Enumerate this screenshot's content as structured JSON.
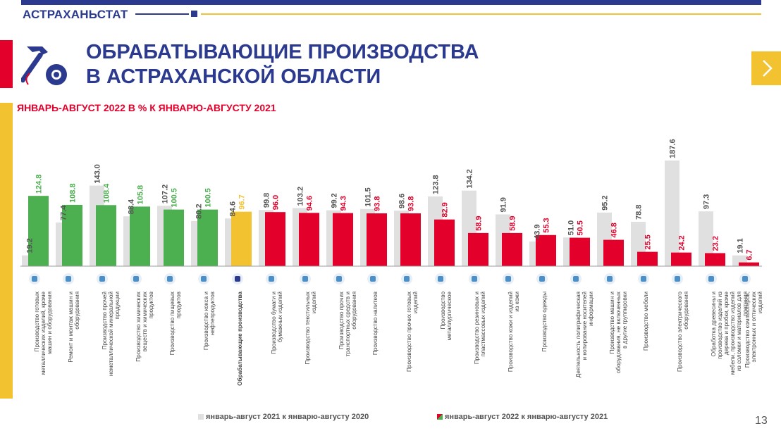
{
  "header": {
    "brand": "АСТРАХАНЬСТАТ"
  },
  "title": {
    "line1": "ОБРАБАТЫВАЮЩИЕ ПРОИЗВОДСТВА",
    "line2": "В АСТРАХАНСКОЙ ОБЛАСТИ"
  },
  "subtitle": "ЯНВАРЬ-АВГУСТ 2022 В % К ЯНВАРЮ-АВГУСТУ 2021",
  "page_number": "13",
  "colors": {
    "brand": "#2b3a8f",
    "accent_red": "#e3002b",
    "accent_yellow": "#f2c230",
    "green": "#4caf50",
    "gray": "#e0e0e0"
  },
  "chart_data": {
    "type": "bar",
    "title": "ЯНВАРЬ-АВГУСТ 2022 В % К ЯНВАРЮ-АВГУСТУ 2021",
    "categories": [
      {
        "label": "Производство готовых металлических изделий, кроме машин и оборудования",
        "bold": false,
        "icon": "metal-products-icon"
      },
      {
        "label": "Ремонт и монтаж машин и оборудования",
        "bold": false,
        "icon": "robot-arm-icon"
      },
      {
        "label": "Производство прочей неметаллической минеральной продукции",
        "bold": false,
        "icon": "mineral-products-icon"
      },
      {
        "label": "Производство химических веществ и химических продуктов",
        "bold": false,
        "icon": "test-tube-icon"
      },
      {
        "label": "Производство пищевых продуктов",
        "bold": false,
        "icon": "ice-cream-icon"
      },
      {
        "label": "Производство кокса и нефтепродуктов",
        "bold": false,
        "icon": "oil-pump-icon"
      },
      {
        "label": "Обрабатывающие производства",
        "bold": true,
        "icon": "hammer-gear-icon"
      },
      {
        "label": "Производство бумаги и бумажных изделий",
        "bold": false,
        "icon": "paper-icon"
      },
      {
        "label": "Производство текстильных изделий",
        "bold": false,
        "icon": "textile-icon"
      },
      {
        "label": "Производство прочих транспортных средств и оборудования",
        "bold": false,
        "icon": "bicycle-icon"
      },
      {
        "label": "Производство напитков",
        "bold": false,
        "icon": "bottle-icon"
      },
      {
        "label": "Производство прочих готовых изделий",
        "bold": false,
        "icon": "misc-products-icon"
      },
      {
        "label": "Производство металлургическое",
        "bold": false,
        "icon": "ladle-icon"
      },
      {
        "label": "Производство резиновых и пластмассовых изделий",
        "bold": false,
        "icon": "boot-icon"
      },
      {
        "label": "Производство кожи и изделий из кожи",
        "bold": false,
        "icon": "leather-icon"
      },
      {
        "label": "Производство одежды",
        "bold": false,
        "icon": "jacket-icon"
      },
      {
        "label": "Деятельность полиграфическая и копирование носителей информации",
        "bold": false,
        "icon": "printing-icon"
      },
      {
        "label": "Производство машин и оборудования, не включенных в другие группировки",
        "bold": false,
        "icon": "machinery-icon"
      },
      {
        "label": "Производство мебели",
        "bold": false,
        "icon": "wardrobe-icon"
      },
      {
        "label": "Производство электрического оборудования",
        "bold": false,
        "icon": "electric-drill-icon"
      },
      {
        "label": "Обработка древесины и производство изделий из дерева и пробки, кроме мебели, производство изделий из соломки и материалов для плетения",
        "bold": false,
        "icon": "wood-icon"
      },
      {
        "label": "Производство компьютеров, электронных и оптических изделий",
        "bold": false,
        "icon": "monitor-icon"
      }
    ],
    "series": [
      {
        "name": "январь-август 2021 к январю-августу 2020",
        "color": "#e0e0e0",
        "values": [
          19.2,
          77.4,
          143.0,
          88.4,
          107.2,
          80.2,
          84.6,
          99.8,
          103.2,
          99.2,
          101.5,
          98.6,
          123.8,
          134.2,
          91.9,
          43.9,
          51.0,
          95.2,
          78.8,
          187.6,
          97.3,
          19.1
        ]
      },
      {
        "name": "январь-август 2022 к январю-августу 2021",
        "values": [
          124.8,
          108.8,
          108.4,
          105.8,
          100.5,
          100.5,
          96.7,
          96.0,
          94.6,
          94.3,
          93.8,
          93.8,
          82.9,
          58.9,
          58.9,
          55.3,
          50.5,
          46.8,
          25.5,
          24.2,
          23.2,
          6.7
        ],
        "colors": [
          "#4caf50",
          "#4caf50",
          "#4caf50",
          "#4caf50",
          "#4caf50",
          "#4caf50",
          "#f2c230",
          "#e3002b",
          "#e3002b",
          "#e3002b",
          "#e3002b",
          "#e3002b",
          "#e3002b",
          "#e3002b",
          "#e3002b",
          "#e3002b",
          "#e3002b",
          "#e3002b",
          "#e3002b",
          "#e3002b",
          "#e3002b",
          "#e3002b"
        ],
        "label_colors": [
          "#4caf50",
          "#4caf50",
          "#4caf50",
          "#4caf50",
          "#4caf50",
          "#4caf50",
          "#f2c230",
          "#e3002b",
          "#e3002b",
          "#e3002b",
          "#e3002b",
          "#e3002b",
          "#e3002b",
          "#e3002b",
          "#e3002b",
          "#e3002b",
          "#e3002b",
          "#e3002b",
          "#e3002b",
          "#e3002b",
          "#e3002b",
          "#e3002b"
        ]
      }
    ],
    "ylim": [
      0,
      200
    ],
    "grid": false,
    "legend_position": "bottom"
  }
}
